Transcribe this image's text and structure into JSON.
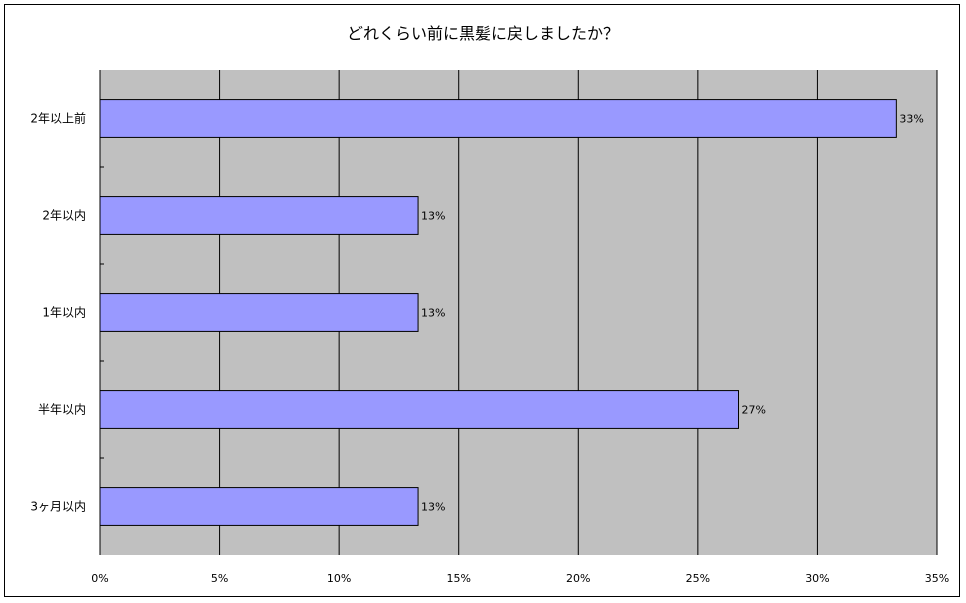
{
  "chart_data": {
    "type": "bar",
    "orientation": "horizontal",
    "title": "どれくらい前に黒髪に戻しましたか？",
    "categories": [
      "2年以上前",
      "2年以内",
      "1年以内",
      "半年以内",
      "3ヶ月以内"
    ],
    "values": [
      33.3,
      13.3,
      13.3,
      26.7,
      13.3
    ],
    "data_labels": [
      "33%",
      "13%",
      "13%",
      "27%",
      "13%"
    ],
    "xlim": [
      0,
      35
    ],
    "x_ticks": [
      "0%",
      "5%",
      "10%",
      "15%",
      "20%",
      "25%",
      "30%",
      "35%"
    ],
    "grid": true,
    "legend": "none",
    "colors": {
      "bar": "#9999ff",
      "plot_bg": "#c0c0c0",
      "grid": "#000000"
    }
  }
}
